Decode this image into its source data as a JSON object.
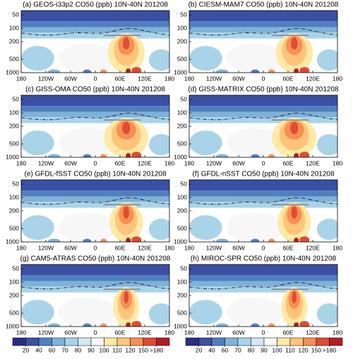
{
  "chart_data": [
    {
      "type": "contour",
      "title": "(a) GEOS-i33p2 CO50 (ppb) 10N-40N 201208",
      "xlim": [
        -180,
        180
      ],
      "xticks": [
        {
          "value": -180,
          "label": "180"
        },
        {
          "value": -120,
          "label": "120W"
        },
        {
          "value": -60,
          "label": "60W"
        },
        0,
        {
          "value": 60,
          "label": "60E"
        },
        {
          "value": 120,
          "label": "120E"
        },
        180
      ],
      "ylim": [
        1000,
        40
      ],
      "yticks": [
        50,
        100,
        200,
        500,
        1000
      ],
      "log_y": true
    },
    {
      "type": "contour",
      "title": "(b) CIESM-MAM7 CO50 (ppb) 10N-40N 201208",
      "xlim": [
        -180,
        180
      ],
      "xticks": [
        {
          "value": -180,
          "label": "180"
        },
        {
          "value": -120,
          "label": "120W"
        },
        {
          "value": -60,
          "label": "60W"
        },
        0,
        {
          "value": 60,
          "label": "60E"
        },
        {
          "value": 120,
          "label": "120E"
        },
        180
      ],
      "ylim": [
        1000,
        40
      ],
      "yticks": [
        50,
        100,
        200,
        500,
        1000
      ],
      "log_y": true
    },
    {
      "type": "contour",
      "title": "(c) GISS-OMA CO50 (ppb) 10N-40N 201208",
      "xlim": [
        -180,
        180
      ],
      "xticks": [
        {
          "value": -180,
          "label": "180"
        },
        {
          "value": -120,
          "label": "120W"
        },
        {
          "value": -60,
          "label": "60W"
        },
        0,
        {
          "value": 60,
          "label": "60E"
        },
        {
          "value": 120,
          "label": "120E"
        },
        180
      ],
      "ylim": [
        1000,
        40
      ],
      "yticks": [
        50,
        100,
        200,
        500,
        1000
      ],
      "log_y": true
    },
    {
      "type": "contour",
      "title": "(d) GISS-MATRIX CO50 (ppb) 10N-40N 201208",
      "xlim": [
        -180,
        180
      ],
      "xticks": [
        {
          "value": -180,
          "label": "180"
        },
        {
          "value": -120,
          "label": "120W"
        },
        {
          "value": -60,
          "label": "60W"
        },
        0,
        {
          "value": 60,
          "label": "60E"
        },
        {
          "value": 120,
          "label": "120E"
        },
        180
      ],
      "ylim": [
        1000,
        40
      ],
      "yticks": [
        50,
        100,
        200,
        500,
        1000
      ],
      "log_y": true
    },
    {
      "type": "contour",
      "title": "(e) GFDL-fSST CO50 (ppb) 10N-40N 201208",
      "xlim": [
        -180,
        180
      ],
      "xticks": [
        {
          "value": -180,
          "label": "180"
        },
        {
          "value": -120,
          "label": "120W"
        },
        {
          "value": -60,
          "label": "60W"
        },
        0,
        {
          "value": 60,
          "label": "60E"
        },
        {
          "value": 120,
          "label": "120E"
        },
        180
      ],
      "ylim": [
        1000,
        40
      ],
      "yticks": [
        50,
        100,
        200,
        500,
        1000
      ],
      "log_y": true
    },
    {
      "type": "contour",
      "title": "(f) GFDL-nSST CO50 (ppb) 10N-40N 201208",
      "xlim": [
        -180,
        180
      ],
      "xticks": [
        {
          "value": -180,
          "label": "180"
        },
        {
          "value": -120,
          "label": "120W"
        },
        {
          "value": -60,
          "label": "60W"
        },
        0,
        {
          "value": 60,
          "label": "60E"
        },
        {
          "value": 120,
          "label": "120E"
        },
        180
      ],
      "ylim": [
        1000,
        40
      ],
      "yticks": [
        50,
        100,
        200,
        500,
        1000
      ],
      "log_y": true
    },
    {
      "type": "contour",
      "title": "(g) CAM5-ATRAS CO50 (ppb) 10N-40N 201208",
      "xlim": [
        -180,
        180
      ],
      "xticks": [
        {
          "value": -180,
          "label": "180"
        },
        {
          "value": -120,
          "label": "120W"
        },
        {
          "value": -60,
          "label": "60W"
        },
        0,
        {
          "value": 60,
          "label": "60E"
        },
        {
          "value": 120,
          "label": "120E"
        },
        180
      ],
      "ylim": [
        1000,
        40
      ],
      "yticks": [
        50,
        100,
        200,
        500,
        1000
      ],
      "log_y": true
    },
    {
      "type": "contour",
      "title": "(h) MIROC-SPR CO50 (ppb) 10N-40N 201208",
      "xlim": [
        -180,
        180
      ],
      "xticks": [
        {
          "value": -180,
          "label": "180"
        },
        {
          "value": -120,
          "label": "120W"
        },
        {
          "value": -60,
          "label": "60W"
        },
        0,
        {
          "value": 60,
          "label": "60E"
        },
        {
          "value": 120,
          "label": "120E"
        },
        180
      ],
      "ylim": [
        1000,
        40
      ],
      "yticks": [
        50,
        100,
        200,
        500,
        1000
      ],
      "log_y": true
    }
  ],
  "colorbar": {
    "ticks": [
      20,
      40,
      60,
      70,
      80,
      90,
      100,
      110,
      120,
      150,
      {
        "value": 180,
        "label": ">180"
      }
    ],
    "colors": [
      "#2a2d86",
      "#3b4fa4",
      "#4f7fbf",
      "#7eb2d8",
      "#a9d3e8",
      "#d1e9f3",
      "#f7f7f7",
      "#fee9a6",
      "#fdc47a",
      "#f68f53",
      "#e04b32",
      "#b01d26"
    ]
  }
}
